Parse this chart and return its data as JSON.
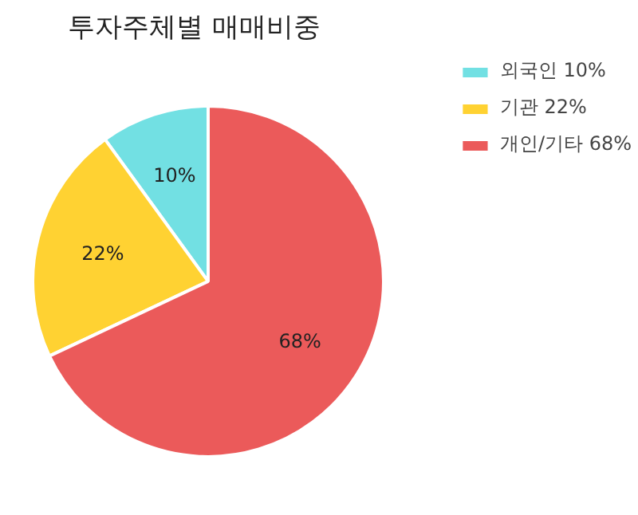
{
  "chart_data": {
    "type": "pie",
    "title": "투자주체별 매매비중",
    "categories": [
      "외국인 10%",
      "기관 22%",
      "개인/기타 68%"
    ],
    "values": [
      10,
      22,
      68
    ],
    "colors": [
      "#72e0e3",
      "#ffd232",
      "#eb5a5a"
    ],
    "value_labels": [
      "10%",
      "22%",
      "68%"
    ],
    "legend": "top right"
  }
}
